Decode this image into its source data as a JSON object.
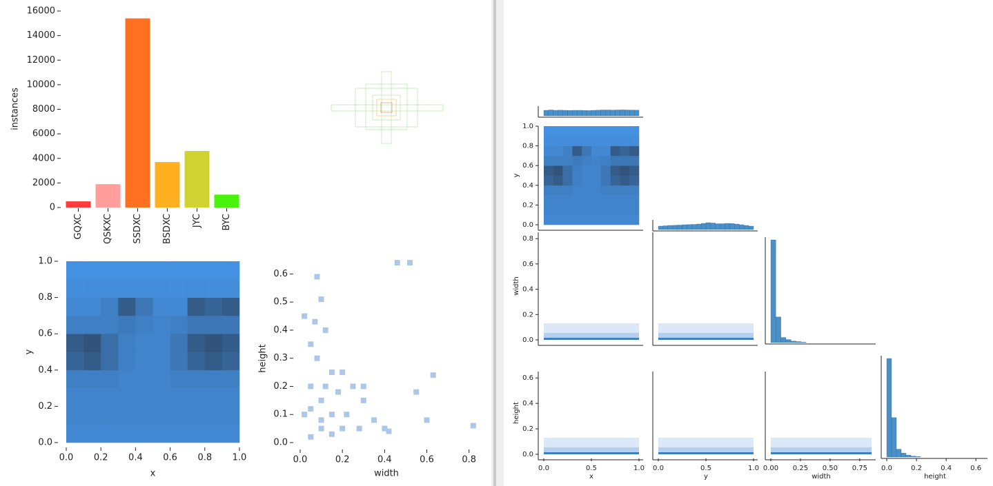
{
  "chart_data": [
    {
      "type": "bar",
      "ylabel": "instances",
      "categories": [
        "GQXC",
        "QSKXC",
        "SSDXC",
        "BSDXC",
        "JYC",
        "BYC"
      ],
      "values": [
        500,
        1900,
        15400,
        3700,
        4600,
        1050
      ],
      "colors": [
        "#ff3b3b",
        "#ff9e9a",
        "#ff7020",
        "#ffb020",
        "#cfd231",
        "#48f20a"
      ],
      "ylim": [
        0,
        16000
      ],
      "yticks": [
        0,
        2000,
        4000,
        6000,
        8000,
        10000,
        12000,
        14000,
        16000
      ]
    },
    {
      "type": "heatmap",
      "xlabel": "x",
      "ylabel": "y",
      "xlim": [
        0,
        1
      ],
      "ylim": [
        0,
        1
      ],
      "xticks": [
        {
          "value": 0,
          "label": "0.0"
        },
        0.2,
        0.4,
        0.6,
        0.8,
        {
          "value": 1,
          "label": "1.0"
        }
      ],
      "yticks": [
        {
          "value": 0,
          "label": "0.0"
        },
        0.2,
        0.4,
        0.6,
        0.8,
        {
          "value": 1,
          "label": "1.0"
        }
      ],
      "z": [
        [
          0.3,
          0.3,
          0.3,
          0.3,
          0.3,
          0.3,
          0.3,
          0.3,
          0.3,
          0.3
        ],
        [
          0.35,
          0.35,
          0.35,
          0.35,
          0.35,
          0.35,
          0.35,
          0.35,
          0.35,
          0.35
        ],
        [
          0.35,
          0.35,
          0.35,
          0.35,
          0.35,
          0.35,
          0.35,
          0.35,
          0.35,
          0.35
        ],
        [
          0.4,
          0.4,
          0.4,
          0.35,
          0.35,
          0.35,
          0.4,
          0.4,
          0.4,
          0.4
        ],
        [
          0.7,
          0.8,
          0.6,
          0.4,
          0.35,
          0.35,
          0.5,
          0.7,
          0.8,
          0.7
        ],
        [
          0.8,
          0.9,
          0.6,
          0.4,
          0.35,
          0.35,
          0.5,
          0.8,
          0.9,
          0.8
        ],
        [
          0.4,
          0.4,
          0.4,
          0.45,
          0.4,
          0.35,
          0.4,
          0.5,
          0.5,
          0.5
        ],
        [
          0.3,
          0.3,
          0.4,
          0.8,
          0.5,
          0.3,
          0.3,
          0.8,
          0.7,
          0.8
        ],
        [
          0.25,
          0.25,
          0.25,
          0.25,
          0.25,
          0.25,
          0.25,
          0.25,
          0.25,
          0.25
        ],
        [
          0.2,
          0.2,
          0.2,
          0.2,
          0.2,
          0.2,
          0.2,
          0.2,
          0.2,
          0.2
        ]
      ]
    },
    {
      "type": "scatter",
      "xlabel": "width",
      "ylabel": "height",
      "xlim": [
        0,
        0.85
      ],
      "ylim": [
        0,
        0.65
      ],
      "color": "#aec7e8",
      "xticks": [
        {
          "value": 0,
          "label": "0.0"
        },
        0.2,
        0.4,
        0.6,
        0.8
      ],
      "yticks": [
        {
          "value": 0,
          "label": "0.0"
        },
        0.1,
        0.2,
        0.3,
        0.4,
        0.5,
        0.6
      ],
      "x": [
        0.02,
        0.08,
        0.1,
        0.07,
        0.12,
        0.05,
        0.08,
        0.15,
        0.2,
        0.12,
        0.18,
        0.25,
        0.3,
        0.05,
        0.1,
        0.02,
        0.15,
        0.22,
        0.3,
        0.35,
        0.4,
        0.28,
        0.2,
        0.1,
        0.05,
        0.55,
        0.63,
        0.46,
        0.52,
        0.6,
        0.82,
        0.42,
        0.1,
        0.05,
        0.15
      ],
      "y": [
        0.45,
        0.59,
        0.51,
        0.43,
        0.4,
        0.35,
        0.3,
        0.25,
        0.25,
        0.2,
        0.18,
        0.2,
        0.2,
        0.2,
        0.15,
        0.1,
        0.1,
        0.1,
        0.15,
        0.08,
        0.05,
        0.05,
        0.05,
        0.05,
        0.02,
        0.18,
        0.24,
        0.64,
        0.64,
        0.08,
        0.06,
        0.04,
        0.08,
        0.12,
        0.03
      ]
    },
    {
      "type": "pairplot",
      "variables": [
        {
          "name": "x",
          "lim": [
            0,
            1
          ],
          "xticks": [
            {
              "value": 0,
              "label": "0.0"
            },
            0.5,
            {
              "value": 1,
              "label": "1.0"
            }
          ],
          "yticks": [],
          "hist": [
            0.8,
            0.85,
            0.8,
            0.82,
            0.8,
            0.78,
            0.8,
            0.8,
            0.78,
            0.76,
            0.8,
            0.82,
            0.85,
            0.85,
            0.83,
            0.85,
            0.86,
            0.85,
            0.84,
            0.82
          ]
        },
        {
          "name": "y",
          "lim": [
            0,
            1
          ],
          "xticks": [
            {
              "value": 0,
              "label": "0.0"
            },
            0.5,
            {
              "value": 1,
              "label": "1.0"
            }
          ],
          "yticks": [
            {
              "value": 0,
              "label": "0.0"
            },
            0.2,
            0.4,
            0.6,
            0.8,
            {
              "value": 1,
              "label": "1.0"
            }
          ],
          "hist": [
            0.5,
            0.55,
            0.6,
            0.62,
            0.65,
            0.7,
            0.72,
            0.75,
            0.8,
            0.9,
            1,
            0.95,
            0.85,
            0.85,
            0.9,
            0.88,
            0.8,
            0.7,
            0.6,
            0.5
          ]
        },
        {
          "name": "width",
          "lim": [
            0,
            0.85
          ],
          "xticks": [
            {
              "value": 0,
              "label": "0.00"
            },
            0.25,
            {
              "value": 0.5,
              "label": "0.50"
            },
            0.75
          ],
          "yticks": [
            {
              "value": 0,
              "label": "0.0"
            },
            0.2,
            0.4,
            0.6,
            0.8
          ],
          "hist": [
            1,
            0.25,
            0.05,
            0.03,
            0.015,
            0.01,
            0.005,
            0,
            0,
            0,
            0,
            0,
            0,
            0,
            0,
            0,
            0,
            0,
            0,
            0
          ]
        },
        {
          "name": "height",
          "lim": [
            0,
            0.65
          ],
          "xticks": [
            {
              "value": 0,
              "label": "0.0"
            },
            0.2,
            0.4,
            0.6
          ],
          "yticks": [
            {
              "value": 0,
              "label": "0.0"
            },
            0.2,
            0.4,
            0.6
          ],
          "hist": [
            1,
            0.4,
            0.08,
            0.04,
            0.02,
            0.01,
            0.005,
            0,
            0,
            0,
            0,
            0,
            0,
            0,
            0,
            0,
            0,
            0,
            0,
            0
          ]
        }
      ]
    }
  ]
}
